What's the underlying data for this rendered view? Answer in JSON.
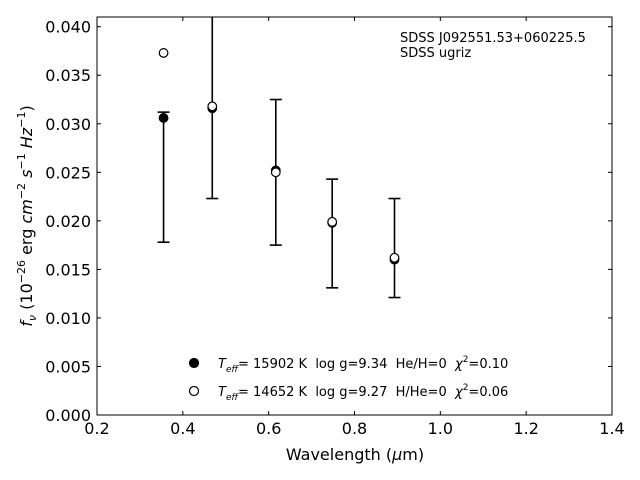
{
  "chart_data": {
    "type": "scatter",
    "xlabel_prefix": "Wavelength (",
    "xlabel_mu": "μ",
    "xlabel_suffix": "m)",
    "xlim": [
      0.2,
      1.4
    ],
    "ylim": [
      0.0,
      0.041
    ],
    "x_ticks": [
      0.2,
      0.4,
      0.6,
      0.8,
      1.0,
      1.2,
      1.4
    ],
    "y_ticks": [
      0.0,
      0.005,
      0.01,
      0.015,
      0.02,
      0.025,
      0.03,
      0.035,
      0.04
    ],
    "annotation_lines": [
      "SDSS J092551.53+060225.5",
      "SDSS ugriz"
    ],
    "observed": {
      "x": [
        0.3551,
        0.4686,
        0.6166,
        0.748,
        0.8932
      ],
      "y": [
        0.0245,
        0.0317,
        0.025,
        0.0187,
        0.0172
      ],
      "yerr": [
        0.0067,
        0.0094,
        0.0075,
        0.0056,
        0.0051
      ]
    },
    "series": [
      {
        "marker": "filled-circle",
        "label": {
          "teff_value": "= 15902 K",
          "logg": "log g=9.34",
          "comp": "He/H=0",
          "chi_value": "=0.10"
        },
        "x": [
          0.3551,
          0.4686,
          0.6166,
          0.748,
          0.8932
        ],
        "y": [
          0.0306,
          0.0316,
          0.0252,
          0.0198,
          0.016
        ]
      },
      {
        "marker": "open-circle",
        "label": {
          "teff_value": "= 14652 K",
          "logg": "log g=9.27",
          "comp": "H/He=0",
          "chi_value": "=0.06"
        },
        "x": [
          0.3551,
          0.4686,
          0.6166,
          0.748,
          0.8932
        ],
        "y": [
          0.0373,
          0.0318,
          0.025,
          0.0199,
          0.0162
        ]
      }
    ]
  }
}
